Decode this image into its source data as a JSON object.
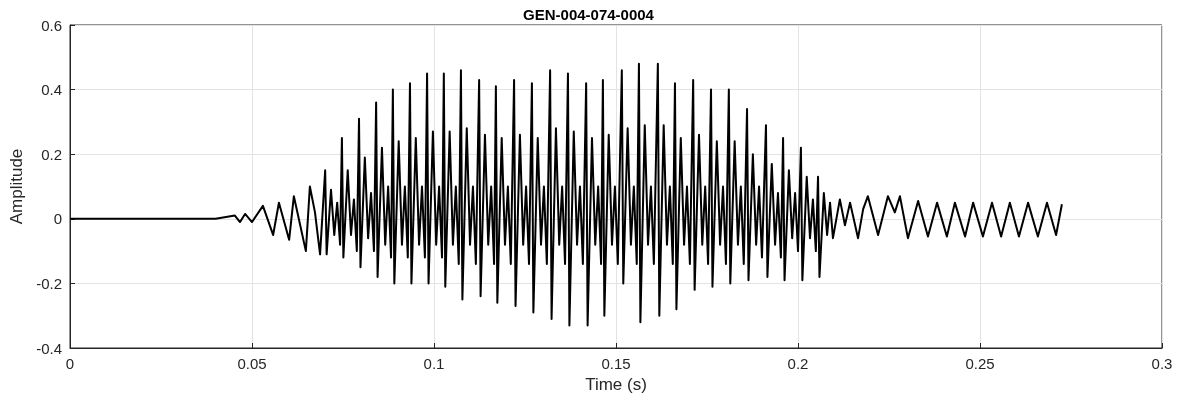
{
  "chart_data": {
    "type": "line",
    "title": "GEN-004-074-0004",
    "xlabel": "Time (s)",
    "ylabel": "Amplitude",
    "xlim": [
      0,
      0.3
    ],
    "xticks": [
      0,
      0.05,
      0.1,
      0.15,
      0.2,
      0.25,
      0.3
    ],
    "ylim": [
      -0.4,
      0.6
    ],
    "yticks": [
      -0.4,
      -0.2,
      0,
      0.2,
      0.4,
      0.6
    ],
    "grid": true,
    "marker": "none",
    "line_style": "solid",
    "series": [
      {
        "color": "#000000",
        "x": [
          0,
          0.02,
          0.04,
          0.0453,
          0.0467,
          0.0481,
          0.05,
          0.053,
          0.0558,
          0.0574,
          0.0602,
          0.0615,
          0.0648,
          0.0659,
          0.0673,
          0.0687,
          0.0701,
          0.0705,
          0.0717,
          0.0726,
          0.0734,
          0.0742,
          0.0747,
          0.0751,
          0.0763,
          0.0772,
          0.078,
          0.0788,
          0.0794,
          0.0798,
          0.081,
          0.0819,
          0.0827,
          0.0835,
          0.0841,
          0.0845,
          0.0857,
          0.0866,
          0.0874,
          0.0882,
          0.0887,
          0.0891,
          0.0903,
          0.0912,
          0.092,
          0.0928,
          0.0934,
          0.0938,
          0.095,
          0.0959,
          0.0967,
          0.0975,
          0.0981,
          0.0985,
          0.0997,
          0.1006,
          0.1014,
          0.1022,
          0.1027,
          0.1031,
          0.1043,
          0.1052,
          0.106,
          0.1068,
          0.1074,
          0.1078,
          0.109,
          0.1099,
          0.1107,
          0.1115,
          0.1124,
          0.1128,
          0.114,
          0.1149,
          0.1157,
          0.1165,
          0.117,
          0.1174,
          0.1186,
          0.1195,
          0.1203,
          0.1211,
          0.122,
          0.1224,
          0.1236,
          0.1245,
          0.1253,
          0.1261,
          0.1269,
          0.1273,
          0.1285,
          0.1294,
          0.1302,
          0.131,
          0.1319,
          0.1323,
          0.1335,
          0.1344,
          0.1352,
          0.136,
          0.1368,
          0.1372,
          0.1384,
          0.1393,
          0.1401,
          0.1409,
          0.1418,
          0.1422,
          0.1434,
          0.1443,
          0.1451,
          0.1459,
          0.1464,
          0.1468,
          0.148,
          0.1489,
          0.1497,
          0.1505,
          0.1516,
          0.152,
          0.1532,
          0.1541,
          0.1549,
          0.1557,
          0.1563,
          0.1567,
          0.1579,
          0.1588,
          0.1596,
          0.1604,
          0.1615,
          0.1619,
          0.1631,
          0.164,
          0.1648,
          0.1656,
          0.1662,
          0.1666,
          0.1678,
          0.1687,
          0.1695,
          0.1703,
          0.1712,
          0.1716,
          0.1728,
          0.1737,
          0.1745,
          0.1753,
          0.1761,
          0.1765,
          0.1777,
          0.1786,
          0.1794,
          0.1802,
          0.181,
          0.1814,
          0.1826,
          0.1835,
          0.1843,
          0.1851,
          0.186,
          0.1864,
          0.1876,
          0.1885,
          0.1893,
          0.1901,
          0.1912,
          0.1916,
          0.1928,
          0.1937,
          0.1945,
          0.1953,
          0.1959,
          0.1963,
          0.1975,
          0.1984,
          0.1992,
          0.2,
          0.2008,
          0.2012,
          0.2024,
          0.2033,
          0.2041,
          0.2049,
          0.2055,
          0.2059,
          0.2071,
          0.208,
          0.2088,
          0.2096,
          0.2115,
          0.2129,
          0.2143,
          0.2165,
          0.2179,
          0.2192,
          0.222,
          0.2247,
          0.2266,
          0.228,
          0.2302,
          0.233,
          0.2357,
          0.2382,
          0.2409,
          0.2431,
          0.2459,
          0.2481,
          0.2508,
          0.2533,
          0.2558,
          0.2582,
          0.2607,
          0.2632,
          0.2659,
          0.2684,
          0.2709,
          0.2725
        ],
        "values": [
          0,
          0,
          0,
          0.01,
          -0.01,
          0.015,
          -0.01,
          0.04,
          -0.05,
          0.05,
          -0.065,
          0.07,
          -0.1,
          0.1,
          0.02,
          -0.11,
          0.15,
          -0.11,
          0.09,
          -0.05,
          0.05,
          -0.08,
          0.25,
          -0.12,
          0.15,
          -0.05,
          0.06,
          -0.1,
          0.31,
          -0.15,
          0.19,
          -0.06,
          0.08,
          -0.1,
          0.36,
          -0.18,
          0.22,
          -0.08,
          0.1,
          -0.12,
          0.4,
          -0.2,
          0.24,
          -0.08,
          0.1,
          -0.12,
          0.42,
          -0.2,
          0.25,
          -0.08,
          0.1,
          -0.12,
          0.45,
          -0.2,
          0.27,
          -0.08,
          0.1,
          -0.12,
          0.45,
          -0.21,
          0.27,
          -0.08,
          0.1,
          -0.14,
          0.46,
          -0.25,
          0.28,
          -0.08,
          0.1,
          -0.14,
          0.43,
          -0.24,
          0.26,
          -0.08,
          0.1,
          -0.14,
          0.41,
          -0.26,
          0.25,
          -0.08,
          0.1,
          -0.14,
          0.43,
          -0.27,
          0.26,
          -0.08,
          0.1,
          -0.14,
          0.42,
          -0.29,
          0.25,
          -0.08,
          0.1,
          -0.14,
          0.46,
          -0.31,
          0.28,
          -0.08,
          0.1,
          -0.14,
          0.45,
          -0.33,
          0.27,
          -0.08,
          0.1,
          -0.14,
          0.42,
          -0.33,
          0.25,
          -0.08,
          0.1,
          -0.14,
          0.43,
          -0.3,
          0.26,
          -0.08,
          0.1,
          -0.14,
          0.46,
          -0.2,
          0.28,
          -0.08,
          0.1,
          -0.14,
          0.48,
          -0.32,
          0.29,
          -0.08,
          0.1,
          -0.14,
          0.48,
          -0.3,
          0.29,
          -0.08,
          0.1,
          -0.14,
          0.42,
          -0.28,
          0.25,
          -0.08,
          0.1,
          -0.14,
          0.43,
          -0.22,
          0.26,
          -0.08,
          0.1,
          -0.14,
          0.4,
          -0.21,
          0.24,
          -0.08,
          0.1,
          -0.14,
          0.4,
          -0.2,
          0.24,
          -0.08,
          0.1,
          -0.14,
          0.34,
          -0.19,
          0.2,
          -0.08,
          0.1,
          -0.12,
          0.29,
          -0.18,
          0.17,
          -0.08,
          0.08,
          -0.12,
          0.25,
          -0.19,
          0.15,
          -0.06,
          0.08,
          -0.1,
          0.22,
          -0.19,
          0.13,
          -0.06,
          0.06,
          -0.1,
          0.13,
          -0.18,
          0.08,
          -0.05,
          0.05,
          -0.06,
          0.06,
          -0.02,
          0.05,
          -0.06,
          0.03,
          0.07,
          -0.05,
          0.07,
          0.02,
          0.07,
          -0.06,
          0.055,
          -0.055,
          0.05,
          -0.055,
          0.05,
          -0.055,
          0.05,
          -0.055,
          0.05,
          -0.055,
          0.05,
          -0.055,
          0.05,
          -0.055,
          0.05,
          -0.05,
          0.045
        ]
      }
    ]
  }
}
